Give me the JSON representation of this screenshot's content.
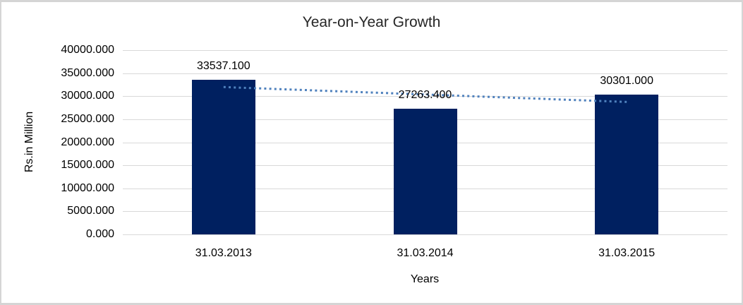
{
  "chart_data": {
    "type": "bar",
    "title": "Year-on-Year Growth",
    "categories": [
      "31.03.2013",
      "31.03.2014",
      "31.03.2015"
    ],
    "values": [
      33537.1,
      27263.4,
      30301.0
    ],
    "data_labels": [
      "33537.100",
      "27263.400",
      "30301.000"
    ],
    "xlabel": "Years",
    "ylabel": "Rs.in Million",
    "ylim": [
      0,
      40000
    ],
    "ytick_step": 5000,
    "ytick_labels": [
      "0.000",
      "5000.000",
      "10000.000",
      "15000.000",
      "20000.000",
      "25000.000",
      "30000.000",
      "35000.000",
      "40000.000"
    ],
    "grid": true,
    "legend": "none",
    "bar_color": "#002060",
    "gridline_color": "#d9d9d9",
    "axis_text_color": "#000000",
    "title_color": "#262626",
    "trendline": {
      "type": "linear",
      "style": "dotted",
      "color": "#4f81bd",
      "start_value": 31985.2,
      "end_value": 28749.1
    }
  }
}
